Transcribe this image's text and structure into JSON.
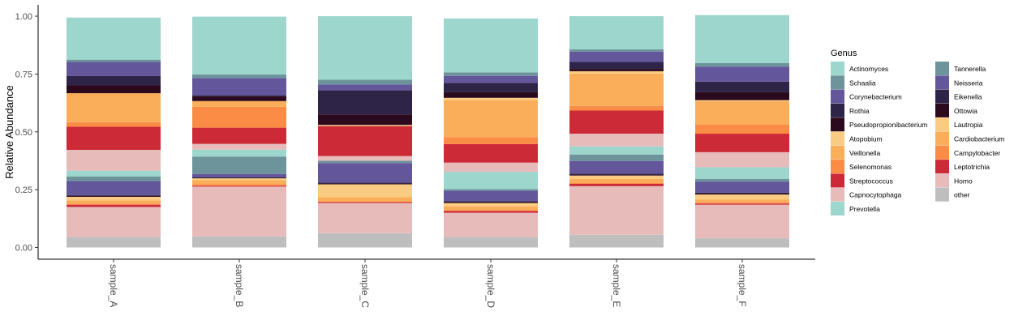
{
  "chart_data": {
    "type": "bar",
    "stacked": true,
    "xlabel": "",
    "ylabel": "Relative Abundance",
    "ylim": [
      0,
      1
    ],
    "y_ticks": [
      "0.00",
      "0.25",
      "0.50",
      "0.75",
      "1.00"
    ],
    "y_tick_values": [
      0,
      0.25,
      0.5,
      0.75,
      1.0
    ],
    "categories": [
      "sample_A",
      "sample_B",
      "sample_C",
      "sample_D",
      "sample_E",
      "sample_F"
    ],
    "legend": {
      "title": "Genus",
      "position": "right",
      "columns": 2
    },
    "grid": false,
    "series": [
      {
        "name": "other",
        "color": "#BEBEBE",
        "values": [
          0.045,
          0.048,
          0.062,
          0.045,
          0.055,
          0.04
        ]
      },
      {
        "name": "Homo",
        "color": "#E8BBBB",
        "values": [
          0.13,
          0.215,
          0.13,
          0.105,
          0.21,
          0.145
        ]
      },
      {
        "name": "Leptotrichia",
        "color": "#CC2A36",
        "values": [
          0.01,
          0.004,
          0.004,
          0.008,
          0.01,
          0.005
        ]
      },
      {
        "name": "Campylobacter",
        "color": "#FB8C46",
        "values": [
          0.005,
          0.006,
          0.002,
          0.004,
          0.006,
          0.005
        ]
      },
      {
        "name": "Cardiobacterium",
        "color": "#FBAE5A",
        "values": [
          0.014,
          0.018,
          0.02,
          0.015,
          0.015,
          0.013
        ]
      },
      {
        "name": "Lautropia",
        "color": "#FACB82",
        "values": [
          0.015,
          0.008,
          0.055,
          0.015,
          0.015,
          0.021
        ]
      },
      {
        "name": "Ottowia",
        "color": "#2A0A1C",
        "values": [
          0.004,
          0.002,
          0.004,
          0.004,
          0.004,
          0.004
        ]
      },
      {
        "name": "Eikenella",
        "color": "#2E2448",
        "values": [
          0.004,
          0.002,
          0.003,
          0.004,
          0.004,
          0.004
        ]
      },
      {
        "name": "Neisseria",
        "color": "#63569B",
        "values": [
          0.06,
          0.015,
          0.085,
          0.045,
          0.055,
          0.048
        ]
      },
      {
        "name": "Tannerella",
        "color": "#6D939B",
        "values": [
          0.02,
          0.075,
          0.01,
          0.007,
          0.028,
          0.012
        ]
      },
      {
        "name": "Prevotella",
        "color": "#9CD6CC",
        "values": [
          0.025,
          0.03,
          0.0,
          0.075,
          0.035,
          0.05
        ]
      },
      {
        "name": "Capnocytophaga",
        "color": "#E8BBBB",
        "values": [
          0.09,
          0.025,
          0.02,
          0.04,
          0.055,
          0.065
        ]
      },
      {
        "name": "Streptococcus",
        "color": "#CC2A36",
        "values": [
          0.1,
          0.07,
          0.13,
          0.08,
          0.1,
          0.08
        ]
      },
      {
        "name": "Selenomonas",
        "color": "#FB8C46",
        "values": [
          0.02,
          0.09,
          0.0,
          0.03,
          0.02,
          0.04
        ]
      },
      {
        "name": "Veillonella",
        "color": "#FBAE5A",
        "values": [
          0.125,
          0.025,
          0.0,
          0.16,
          0.14,
          0.1
        ]
      },
      {
        "name": "Atopobium",
        "color": "#FACB82",
        "values": [
          0.0,
          0.0,
          0.005,
          0.01,
          0.01,
          0.005
        ]
      },
      {
        "name": "Pseudopropionibacterium",
        "color": "#2A0A1C",
        "values": [
          0.035,
          0.02,
          0.045,
          0.025,
          0.01,
          0.035
        ]
      },
      {
        "name": "Rothia",
        "color": "#2E2448",
        "values": [
          0.04,
          0.005,
          0.105,
          0.04,
          0.03,
          0.045
        ]
      },
      {
        "name": "Corynebacterium",
        "color": "#63569B",
        "values": [
          0.06,
          0.075,
          0.025,
          0.03,
          0.045,
          0.065
        ]
      },
      {
        "name": "Schaalia",
        "color": "#6D939B",
        "values": [
          0.01,
          0.015,
          0.02,
          0.015,
          0.01,
          0.015
        ]
      },
      {
        "name": "Actinomyces",
        "color": "#9CD6CC",
        "values": [
          0.182,
          0.25,
          0.275,
          0.233,
          0.143,
          0.208
        ]
      }
    ],
    "legend_order": [
      "Actinomyces",
      "Schaalia",
      "Corynebacterium",
      "Rothia",
      "Pseudopropionibacterium",
      "Atopobium",
      "Veillonella",
      "Selenomonas",
      "Streptococcus",
      "Capnocytophaga",
      "Prevotella",
      "Tannerella",
      "Neisseria",
      "Eikenella",
      "Ottowia",
      "Lautropia",
      "Cardiobacterium",
      "Campylobacter",
      "Leptotrichia",
      "Homo",
      "other"
    ]
  }
}
